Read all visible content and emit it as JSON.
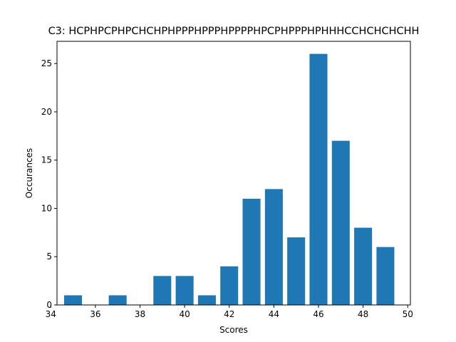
{
  "chart_data": {
    "type": "bar",
    "title": "C3: HCPHPCPHPCHCHPHPPPHPPPHPPPPHPCPHPPPHPHHHCCHCHCHCHH",
    "xlabel": "Scores",
    "ylabel": "Occurances",
    "x": [
      35,
      36,
      37,
      38,
      39,
      40,
      41,
      42,
      43,
      44,
      45,
      46,
      47,
      48,
      49
    ],
    "values": [
      1,
      0,
      1,
      0,
      3,
      3,
      1,
      4,
      11,
      12,
      7,
      26,
      17,
      8,
      6
    ],
    "bar_width": 0.8,
    "xlim": [
      34.28,
      50.12
    ],
    "ylim": [
      0,
      27.3
    ],
    "xticks": [
      34,
      36,
      38,
      40,
      42,
      44,
      46,
      48,
      50
    ],
    "yticks": [
      0,
      5,
      10,
      15,
      20,
      25
    ],
    "bar_color": "#1f77b4",
    "grid": false
  }
}
